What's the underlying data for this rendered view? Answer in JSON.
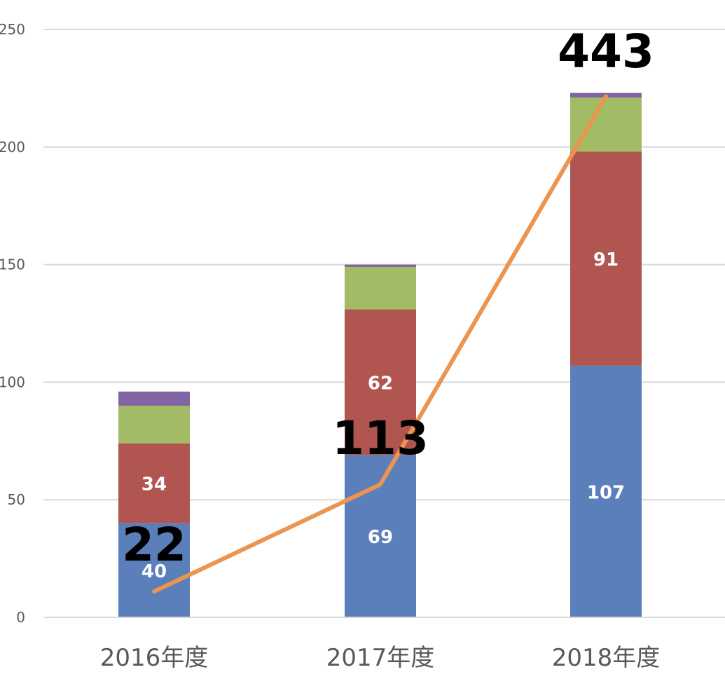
{
  "chart_data": {
    "type": "bar",
    "stacked": true,
    "categories": [
      "2016年度",
      "2017年度",
      "2018年度"
    ],
    "ylim": [
      0,
      250
    ],
    "yticks": [
      0,
      50,
      100,
      150,
      200,
      250
    ],
    "ytick_labels": [
      "0",
      "50",
      "100",
      "150",
      "200",
      "250"
    ],
    "grid": true,
    "series": [
      {
        "color": "#5B7FBB",
        "values": [
          40,
          69,
          107
        ],
        "labels": [
          "40",
          "69",
          "107"
        ]
      },
      {
        "color": "#B0554F",
        "values": [
          34,
          62,
          91
        ],
        "labels": [
          "34",
          "62",
          "91"
        ]
      },
      {
        "color": "#A2BB65",
        "values": [
          16,
          18,
          23
        ],
        "labels": [
          "",
          "",
          ""
        ]
      },
      {
        "color": "#7F65A1",
        "values": [
          6,
          1,
          2
        ],
        "labels": [
          "",
          "",
          ""
        ]
      }
    ],
    "line": {
      "color": "#EB9551",
      "values": [
        11,
        56.5,
        221.5
      ],
      "labels": [
        "22",
        "113",
        "443"
      ]
    }
  }
}
